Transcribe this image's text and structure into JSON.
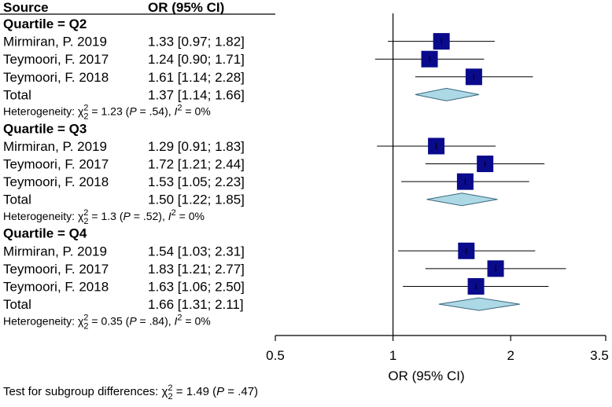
{
  "chart_data": {
    "type": "forest",
    "header": {
      "source": "Source",
      "estimate": "OR (95% CI)"
    },
    "xlabel": "OR (95% CI)",
    "scale": "log",
    "xlim": [
      0.5,
      3.5
    ],
    "ticks": [
      "0.5",
      "1",
      "2",
      "3.5"
    ],
    "tick_values": [
      0.5,
      1,
      2,
      3.5
    ],
    "reference_line": 1,
    "colors": {
      "square": "#0a0a8c",
      "diamond": "#add8e6",
      "line": "#000000"
    },
    "groups": [
      {
        "label": "Quartile = Q2",
        "studies": [
          {
            "name": "Mirmiran, P. 2019",
            "text": "1.33 [0.97; 1.82]",
            "or": 1.33,
            "lo": 0.97,
            "hi": 1.82
          },
          {
            "name": "Teymoori, F. 2017",
            "text": "1.24 [0.90; 1.71]",
            "or": 1.24,
            "lo": 0.9,
            "hi": 1.71
          },
          {
            "name": "Teymoori, F. 2018",
            "text": "1.61 [1.14; 2.28]",
            "or": 1.61,
            "lo": 1.14,
            "hi": 2.28
          }
        ],
        "total": {
          "name": "Total",
          "text": "1.37 [1.14; 1.66]",
          "or": 1.37,
          "lo": 1.14,
          "hi": 1.66
        },
        "het": {
          "pre": "Heterogeneity: χ",
          "sup": "2",
          "sub": "2",
          "val": " = 1.23 (",
          "p": "P",
          "pval": " = .54), ",
          "i": "I",
          "isup": "2",
          "ival": " = 0%"
        }
      },
      {
        "label": "Quartile = Q3",
        "studies": [
          {
            "name": "Mirmiran, P. 2019",
            "text": "1.29 [0.91; 1.83]",
            "or": 1.29,
            "lo": 0.91,
            "hi": 1.83
          },
          {
            "name": "Teymoori, F. 2017",
            "text": "1.72 [1.21; 2.44]",
            "or": 1.72,
            "lo": 1.21,
            "hi": 2.44
          },
          {
            "name": "Teymoori, F. 2018",
            "text": "1.53 [1.05; 2.23]",
            "or": 1.53,
            "lo": 1.05,
            "hi": 2.23
          }
        ],
        "total": {
          "name": "Total",
          "text": "1.50 [1.22; 1.85]",
          "or": 1.5,
          "lo": 1.22,
          "hi": 1.85
        },
        "het": {
          "pre": "Heterogeneity: χ",
          "sup": "2",
          "sub": "2",
          "val": " = 1.3 (",
          "p": "P",
          "pval": " = .52), ",
          "i": "I",
          "isup": "2",
          "ival": " = 0%"
        }
      },
      {
        "label": "Quartile = Q4",
        "studies": [
          {
            "name": "Mirmiran, P. 2019",
            "text": "1.54 [1.03; 2.31]",
            "or": 1.54,
            "lo": 1.03,
            "hi": 2.31
          },
          {
            "name": "Teymoori, F. 2017",
            "text": "1.83 [1.21; 2.77]",
            "or": 1.83,
            "lo": 1.21,
            "hi": 2.77
          },
          {
            "name": "Teymoori, F. 2018",
            "text": "1.63 [1.06; 2.50]",
            "or": 1.63,
            "lo": 1.06,
            "hi": 2.5
          }
        ],
        "total": {
          "name": "Total",
          "text": "1.66 [1.31; 2.11]",
          "or": 1.66,
          "lo": 1.31,
          "hi": 2.11
        },
        "het": {
          "pre": "Heterogeneity: χ",
          "sup": "2",
          "sub": "2",
          "val": " = 0.35 (",
          "p": "P",
          "pval": " = .84), ",
          "i": "I",
          "isup": "2",
          "ival": " = 0%"
        }
      }
    ],
    "footer": {
      "pre": "Test for subgroup differences: χ",
      "sup": "2",
      "sub": "2",
      "val": " = 1.49 (",
      "p": "P",
      "pval": " = .47)"
    }
  }
}
